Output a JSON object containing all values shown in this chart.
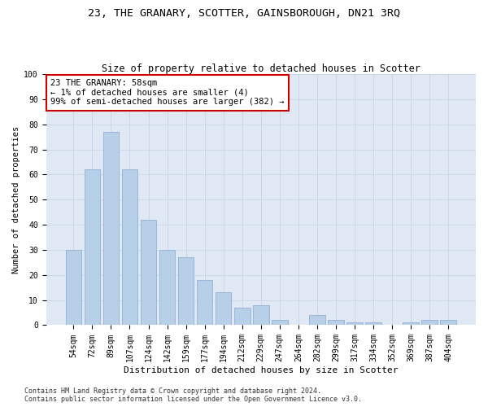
{
  "title": "23, THE GRANARY, SCOTTER, GAINSBOROUGH, DN21 3RQ",
  "subtitle": "Size of property relative to detached houses in Scotter",
  "xlabel": "Distribution of detached houses by size in Scotter",
  "ylabel": "Number of detached properties",
  "categories": [
    "54sqm",
    "72sqm",
    "89sqm",
    "107sqm",
    "124sqm",
    "142sqm",
    "159sqm",
    "177sqm",
    "194sqm",
    "212sqm",
    "229sqm",
    "247sqm",
    "264sqm",
    "282sqm",
    "299sqm",
    "317sqm",
    "334sqm",
    "352sqm",
    "369sqm",
    "387sqm",
    "404sqm"
  ],
  "values": [
    30,
    62,
    77,
    62,
    42,
    30,
    27,
    18,
    13,
    7,
    8,
    2,
    0,
    4,
    2,
    1,
    1,
    0,
    1,
    2,
    2
  ],
  "bar_color": "#b8cfe8",
  "bar_edge_color": "#90b0d8",
  "annotation_text": "23 THE GRANARY: 58sqm\n← 1% of detached houses are smaller (4)\n99% of semi-detached houses are larger (382) →",
  "annotation_box_color": "#ffffff",
  "annotation_box_edge_color": "#cc0000",
  "ylim": [
    0,
    100
  ],
  "yticks": [
    0,
    10,
    20,
    30,
    40,
    50,
    60,
    70,
    80,
    90,
    100
  ],
  "grid_color": "#c8d4e8",
  "background_color": "#e0e8f4",
  "footer_line1": "Contains HM Land Registry data © Crown copyright and database right 2024.",
  "footer_line2": "Contains public sector information licensed under the Open Government Licence v3.0.",
  "title_fontsize": 9.5,
  "subtitle_fontsize": 8.5,
  "xlabel_fontsize": 8,
  "ylabel_fontsize": 7.5,
  "tick_fontsize": 7,
  "annotation_fontsize": 7.5,
  "footer_fontsize": 6
}
